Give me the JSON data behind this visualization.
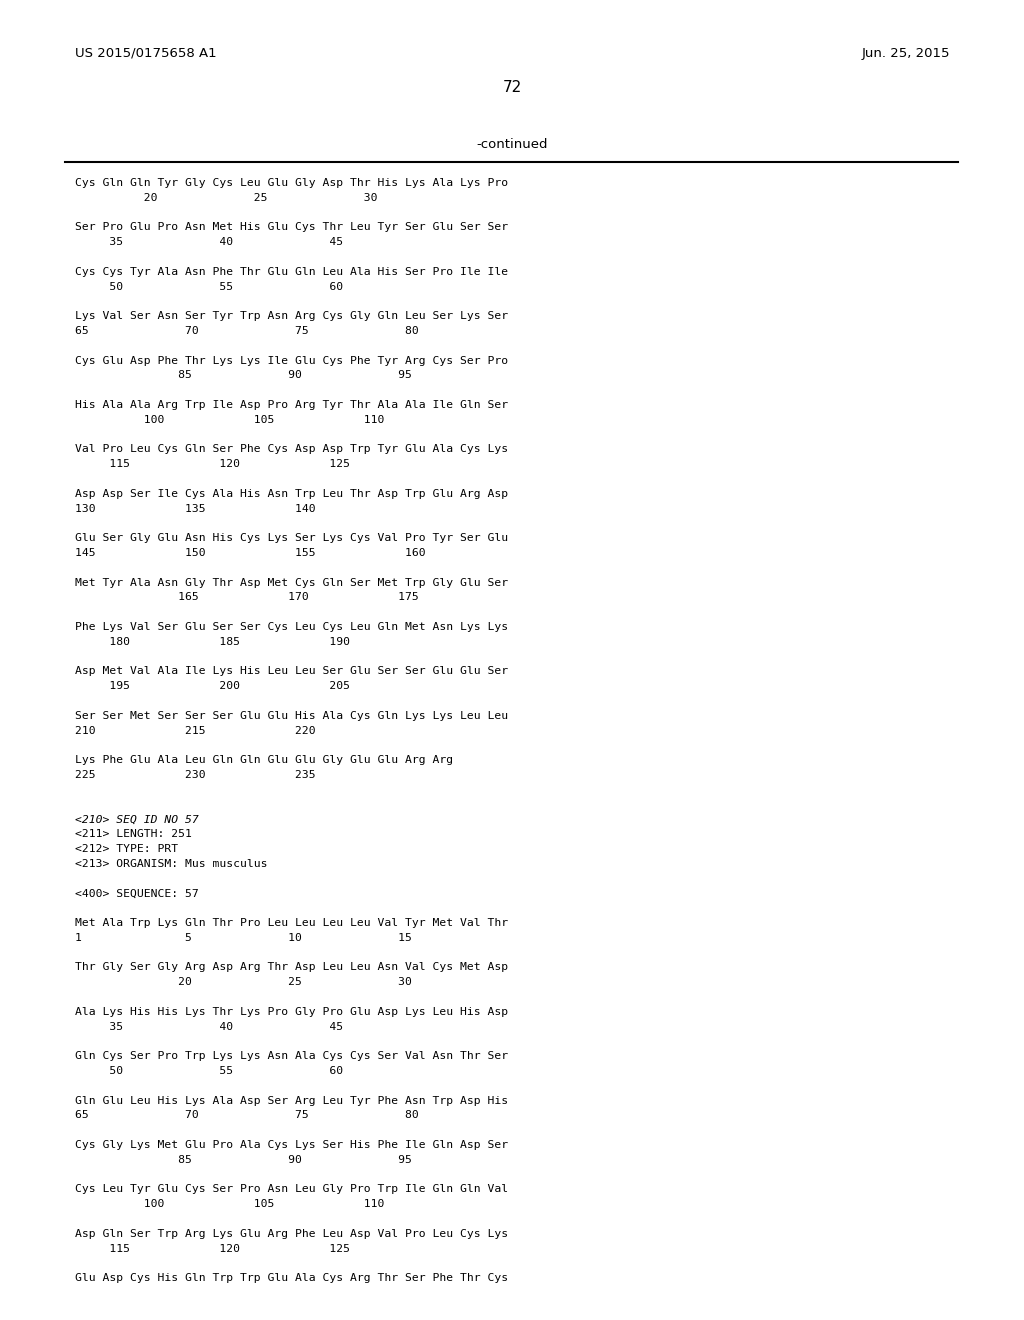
{
  "patent_number": "US 2015/0175658 A1",
  "date": "Jun. 25, 2015",
  "page_number": "72",
  "continued_label": "-continued",
  "background_color": "#ffffff",
  "text_color": "#000000",
  "sequence_lines": [
    "Cys Gln Gln Tyr Gly Cys Leu Glu Gly Asp Thr His Lys Ala Lys Pro",
    "          20              25              30",
    "",
    "Ser Pro Glu Pro Asn Met His Glu Cys Thr Leu Tyr Ser Glu Ser Ser",
    "     35              40              45",
    "",
    "Cys Cys Tyr Ala Asn Phe Thr Glu Gln Leu Ala His Ser Pro Ile Ile",
    "     50              55              60",
    "",
    "Lys Val Ser Asn Ser Tyr Trp Asn Arg Cys Gly Gln Leu Ser Lys Ser",
    "65              70              75              80",
    "",
    "Cys Glu Asp Phe Thr Lys Lys Ile Glu Cys Phe Tyr Arg Cys Ser Pro",
    "               85              90              95",
    "",
    "His Ala Ala Arg Trp Ile Asp Pro Arg Tyr Thr Ala Ala Ile Gln Ser",
    "          100             105             110",
    "",
    "Val Pro Leu Cys Gln Ser Phe Cys Asp Asp Trp Tyr Glu Ala Cys Lys",
    "     115             120             125",
    "",
    "Asp Asp Ser Ile Cys Ala His Asn Trp Leu Thr Asp Trp Glu Arg Asp",
    "130             135             140",
    "",
    "Glu Ser Gly Glu Asn His Cys Lys Ser Lys Cys Val Pro Tyr Ser Glu",
    "145             150             155             160",
    "",
    "Met Tyr Ala Asn Gly Thr Asp Met Cys Gln Ser Met Trp Gly Glu Ser",
    "               165             170             175",
    "",
    "Phe Lys Val Ser Glu Ser Ser Cys Leu Cys Leu Gln Met Asn Lys Lys",
    "     180             185             190",
    "",
    "Asp Met Val Ala Ile Lys His Leu Leu Ser Glu Ser Ser Glu Glu Ser",
    "     195             200             205",
    "",
    "Ser Ser Met Ser Ser Ser Glu Glu His Ala Cys Gln Lys Lys Leu Leu",
    "210             215             220",
    "",
    "Lys Phe Glu Ala Leu Gln Gln Glu Glu Gly Glu Glu Arg Arg",
    "225             230             235",
    "",
    "",
    "<210> SEQ ID NO 57",
    "<211> LENGTH: 251",
    "<212> TYPE: PRT",
    "<213> ORGANISM: Mus musculus",
    "",
    "<400> SEQUENCE: 57",
    "",
    "Met Ala Trp Lys Gln Thr Pro Leu Leu Leu Leu Val Tyr Met Val Thr",
    "1               5              10              15",
    "",
    "Thr Gly Ser Gly Arg Asp Arg Thr Asp Leu Leu Asn Val Cys Met Asp",
    "               20              25              30",
    "",
    "Ala Lys His His Lys Thr Lys Pro Gly Pro Glu Asp Lys Leu His Asp",
    "     35              40              45",
    "",
    "Gln Cys Ser Pro Trp Lys Lys Asn Ala Cys Cys Ser Val Asn Thr Ser",
    "     50              55              60",
    "",
    "Gln Glu Leu His Lys Ala Asp Ser Arg Leu Tyr Phe Asn Trp Asp His",
    "65              70              75              80",
    "",
    "Cys Gly Lys Met Glu Pro Ala Cys Lys Ser His Phe Ile Gln Asp Ser",
    "               85              90              95",
    "",
    "Cys Leu Tyr Glu Cys Ser Pro Asn Leu Gly Pro Trp Ile Gln Gln Val",
    "          100             105             110",
    "",
    "Asp Gln Ser Trp Arg Lys Glu Arg Phe Leu Asp Val Pro Leu Cys Lys",
    "     115             120             125",
    "",
    "Glu Asp Cys His Gln Trp Trp Glu Ala Cys Arg Thr Ser Phe Thr Cys"
  ],
  "italic_lines": [
    43
  ]
}
